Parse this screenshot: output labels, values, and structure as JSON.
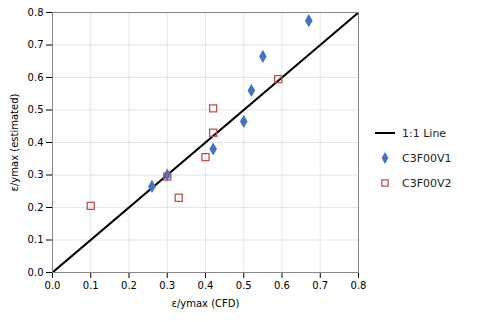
{
  "chart_data": {
    "type": "scatter",
    "xlabel": "ε/ymax (CFD)",
    "ylabel": "ε/ymax (estimated)",
    "series": [
      {
        "name": "1:1 Line",
        "type": "line",
        "color": "#000000",
        "line_style": "solid",
        "x": [
          0.0,
          0.8
        ],
        "values": [
          0.0,
          0.8
        ]
      },
      {
        "name": "C3F00V1",
        "type": "scatter",
        "color": "#4472C4",
        "marker": "diamond",
        "x": [
          0.26,
          0.3,
          0.42,
          0.5,
          0.52,
          0.55,
          0.67
        ],
        "values": [
          0.265,
          0.3,
          0.38,
          0.465,
          0.56,
          0.665,
          0.775
        ]
      },
      {
        "name": "C3F00V2",
        "type": "scatter",
        "color": "#C0504D",
        "marker": "square",
        "x": [
          0.1,
          0.3,
          0.33,
          0.4,
          0.42,
          0.42,
          0.59
        ],
        "values": [
          0.205,
          0.295,
          0.23,
          0.355,
          0.43,
          0.505,
          0.595
        ]
      }
    ],
    "xlim": [
      0.0,
      0.8
    ],
    "ylim": [
      0.0,
      0.8
    ],
    "xticks": [
      {
        "value": 0.0,
        "label": "0.0"
      },
      0.1,
      0.2,
      0.3,
      0.4,
      0.5,
      0.6,
      0.7,
      0.8
    ],
    "yticks": [
      {
        "value": 0.0,
        "label": "0.0"
      },
      0.1,
      0.2,
      0.3,
      0.4,
      0.5,
      0.6,
      0.7,
      0.8
    ],
    "grid": true,
    "legend": "right"
  }
}
